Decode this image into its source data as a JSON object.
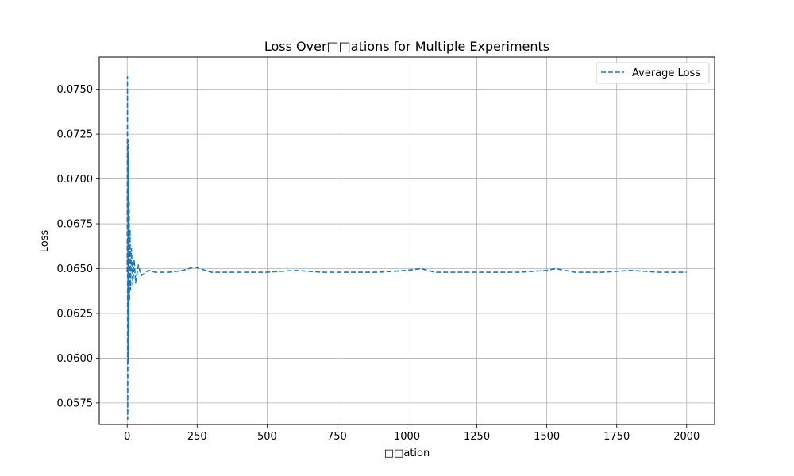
{
  "chart_data": {
    "type": "line",
    "title": "Loss Over□□ations for Multiple Experiments",
    "xlabel": "□□ation",
    "ylabel": "Loss",
    "xlim": [
      -100,
      2100
    ],
    "ylim": [
      0.0563,
      0.0768
    ],
    "xticks": [
      0,
      250,
      500,
      750,
      1000,
      1250,
      1500,
      1750,
      2000
    ],
    "xtick_labels": [
      "0",
      "250",
      "500",
      "750",
      "1000",
      "1250",
      "1500",
      "1750",
      "2000"
    ],
    "yticks": [
      0.0575,
      0.06,
      0.0625,
      0.065,
      0.0675,
      0.07,
      0.0725,
      0.075
    ],
    "ytick_labels": [
      "0.0575",
      "0.0600",
      "0.0625",
      "0.0650",
      "0.0675",
      "0.0700",
      "0.0725",
      "0.0750"
    ],
    "grid": true,
    "legend": {
      "position": "top-right",
      "entries": [
        "Average Loss"
      ]
    },
    "series": [
      {
        "name": "Average Loss",
        "color": "#1f77b4",
        "linestyle": "dashed",
        "x": [
          0,
          1,
          2,
          3,
          4,
          5,
          6,
          7,
          8,
          10,
          12,
          15,
          20,
          25,
          30,
          40,
          50,
          75,
          100,
          150,
          200,
          240,
          300,
          400,
          500,
          600,
          700,
          800,
          900,
          1000,
          1050,
          1100,
          1200,
          1300,
          1400,
          1500,
          1530,
          1600,
          1700,
          1800,
          1900,
          2000
        ],
        "y": [
          0.0648,
          0.0757,
          0.0566,
          0.0722,
          0.0598,
          0.0712,
          0.0615,
          0.0688,
          0.0632,
          0.0672,
          0.0638,
          0.0661,
          0.0641,
          0.0655,
          0.0642,
          0.0652,
          0.0646,
          0.0649,
          0.0648,
          0.0648,
          0.0649,
          0.0651,
          0.0648,
          0.0648,
          0.0648,
          0.0649,
          0.0648,
          0.0648,
          0.0648,
          0.0649,
          0.065,
          0.0648,
          0.0648,
          0.0648,
          0.0648,
          0.0649,
          0.065,
          0.0648,
          0.0648,
          0.0649,
          0.0648,
          0.0648
        ]
      }
    ]
  }
}
